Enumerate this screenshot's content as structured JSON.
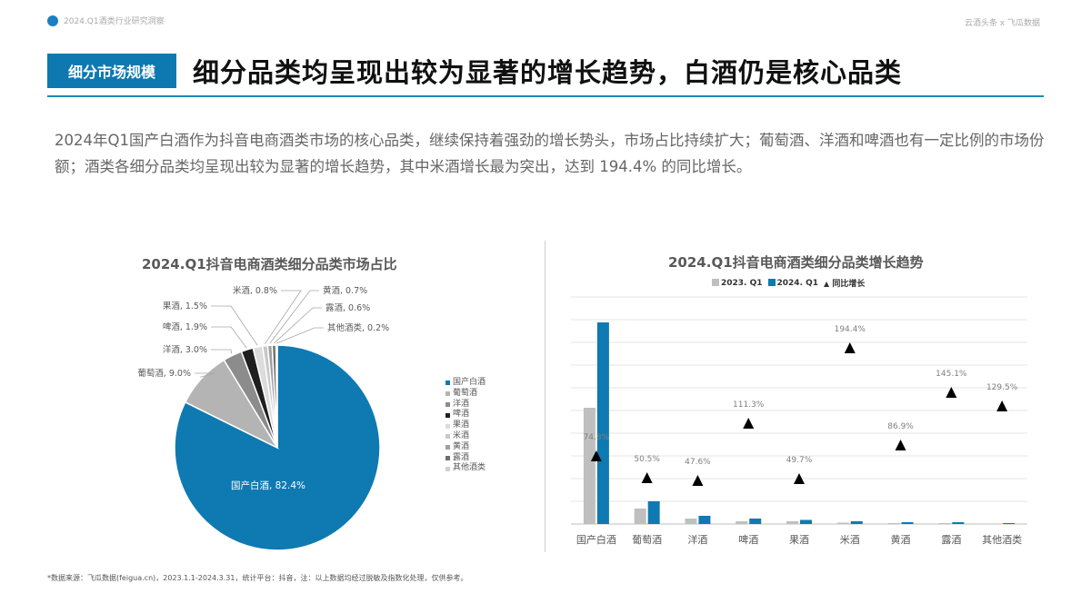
{
  "topbar": {
    "left": "2024.Q1酒类行业研究洞察",
    "right": "云酒头条 x 飞瓜数据"
  },
  "header": {
    "tag": "细分市场规模",
    "title": "细分品类均呈现出较为显著的增长趋势，白酒仍是核心品类"
  },
  "intro": "2024年Q1国产白酒作为抖音电商酒类市场的核心品类，继续保持着强劲的增长势头，市场占比持续扩大；葡萄酒、洋酒和啤酒也有一定比例的市场份额；酒类各细分品类均呈现出较为显著的增长趋势，其中米酒增长最为突出，达到 194.4% 的同比增长。",
  "footnote": "*数据来源：飞瓜数据(feigua.cn)，2023.1.1-2024.3.31，统计平台：抖音，注：以上数据均经过脱敏及指数化处理，仅供参考。",
  "colors": {
    "accent": "#0d79b0",
    "gray2023": "#bfbfbf",
    "blue2024": "#0e7ab1",
    "triangle": "#000000"
  },
  "chart_data": [
    {
      "type": "pie",
      "title": "2024.Q1抖音电商酒类细分品类市场占比",
      "labels": [
        "国产白酒",
        "葡萄酒",
        "洋酒",
        "啤酒",
        "果酒",
        "米酒",
        "黄酒",
        "露酒",
        "其他酒类"
      ],
      "values": [
        82.4,
        9.0,
        3.0,
        1.9,
        1.5,
        0.8,
        0.7,
        0.6,
        0.2
      ],
      "colors": [
        "#0e7ab1",
        "#b4b4b4",
        "#8c8c8c",
        "#1f1f1f",
        "#dcdcdc",
        "#c8c8c8",
        "#a0a0a0",
        "#6e6e6e",
        "#d0d0d0"
      ],
      "data_labels": [
        "国产白酒, 82.4%",
        "葡萄酒, 9.0%",
        "洋酒, 3.0%",
        "啤酒, 1.9%",
        "果酒, 1.5%",
        "米酒, 0.8%",
        "黄酒, 0.7%",
        "露酒, 0.6%",
        "其他酒类, 0.2%"
      ],
      "legend_position": "right"
    },
    {
      "type": "bar",
      "title": "2024.Q1抖音电商酒类细分品类增长趋势",
      "categories": [
        "国产白酒",
        "葡萄酒",
        "洋酒",
        "啤酒",
        "果酒",
        "米酒",
        "黄酒",
        "露酒",
        "其他酒类"
      ],
      "series": [
        {
          "name": "2023. Q1",
          "type": "bar",
          "values": [
            128,
            17,
            6,
            3,
            3,
            1.5,
            1,
            1,
            0.3
          ]
        },
        {
          "name": "2024. Q1",
          "type": "bar",
          "values": [
            222,
            25,
            9,
            6,
            4.5,
            3,
            2,
            2,
            1
          ]
        },
        {
          "name": "同比增长",
          "type": "scatter",
          "unit": "%",
          "values": [
            74.8,
            50.5,
            47.6,
            111.3,
            49.7,
            194.4,
            86.9,
            145.1,
            129.5
          ]
        }
      ],
      "growth_labels": [
        "74.8%",
        "50.5%",
        "47.6%",
        "111.3%",
        "49.7%",
        "194.4%",
        "86.9%",
        "145.1%",
        "129.5%"
      ],
      "legend": [
        "2023. Q1",
        "2024. Q1",
        "同比增长"
      ],
      "legend_position": "top",
      "grid": true,
      "yaxis_visible": false,
      "note": "bar values are relative indexed heights (no y-axis shown)"
    }
  ]
}
